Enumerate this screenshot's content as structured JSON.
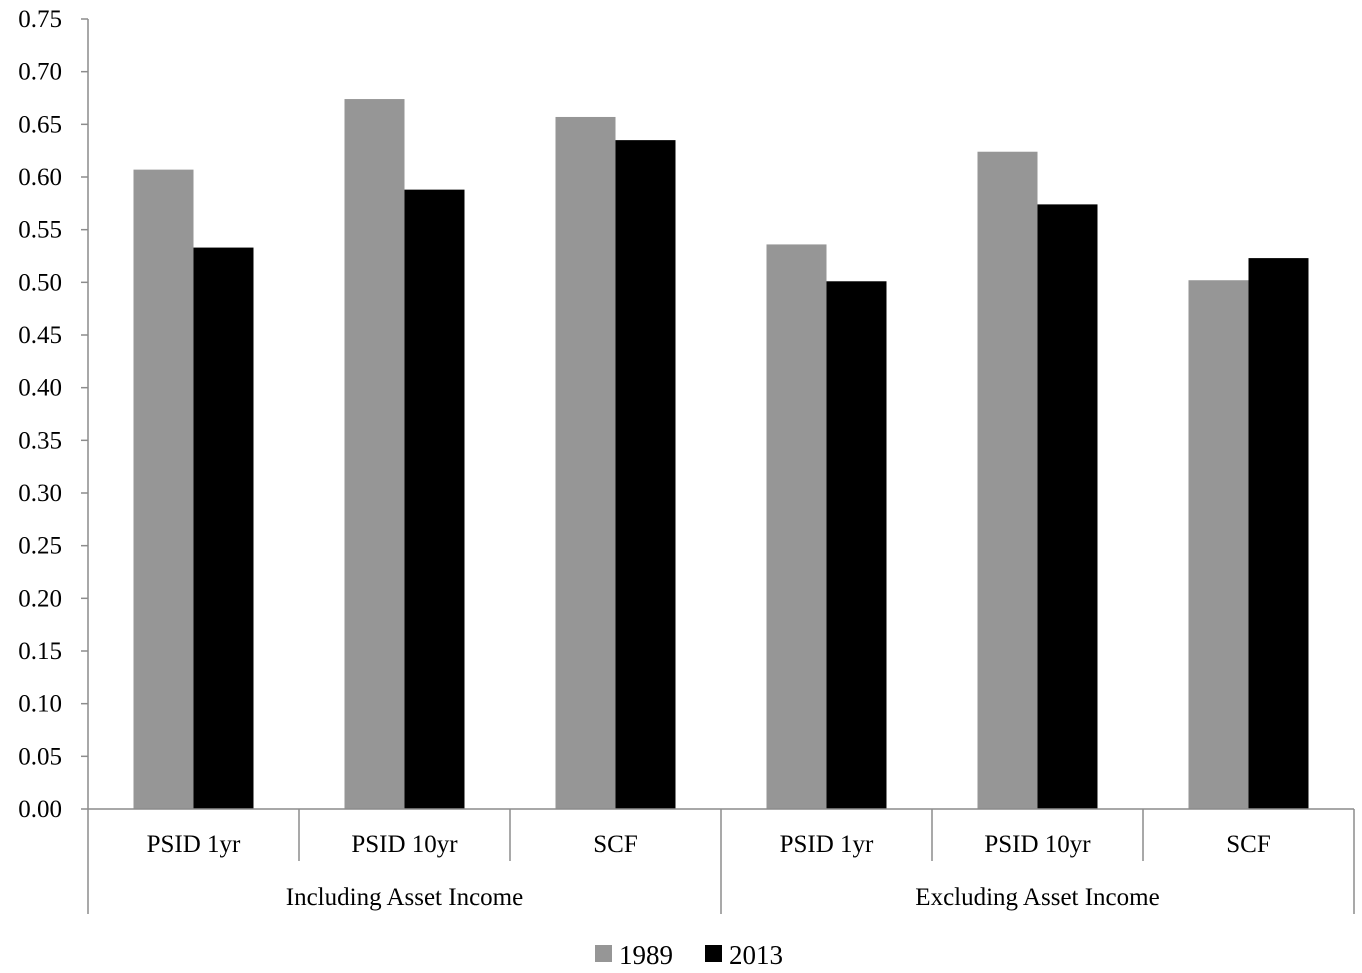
{
  "chart_data": {
    "type": "bar",
    "title": "",
    "xlabel": "",
    "ylabel": "",
    "ylim": [
      0,
      0.75
    ],
    "ytick_step": 0.05,
    "yticks": [
      "0.00",
      "0.05",
      "0.10",
      "0.15",
      "0.20",
      "0.25",
      "0.30",
      "0.35",
      "0.40",
      "0.45",
      "0.50",
      "0.55",
      "0.60",
      "0.65",
      "0.70",
      "0.75"
    ],
    "grid": false,
    "legend_position": "bottom",
    "groups": [
      {
        "label": "Including Asset Income",
        "categories": [
          "PSID 1yr",
          "PSID 10yr",
          "SCF"
        ]
      },
      {
        "label": "Excluding Asset Income",
        "categories": [
          "PSID 1yr",
          "PSID 10yr",
          "SCF"
        ]
      }
    ],
    "categories": [
      "PSID 1yr",
      "PSID 10yr",
      "SCF",
      "PSID 1yr",
      "PSID 10yr",
      "SCF"
    ],
    "series": [
      {
        "name": "1989",
        "color": "#969696",
        "values": [
          0.607,
          0.674,
          0.657,
          0.536,
          0.624,
          0.502
        ]
      },
      {
        "name": "2013",
        "color": "#000000",
        "values": [
          0.533,
          0.588,
          0.635,
          0.501,
          0.574,
          0.523
        ]
      }
    ]
  }
}
